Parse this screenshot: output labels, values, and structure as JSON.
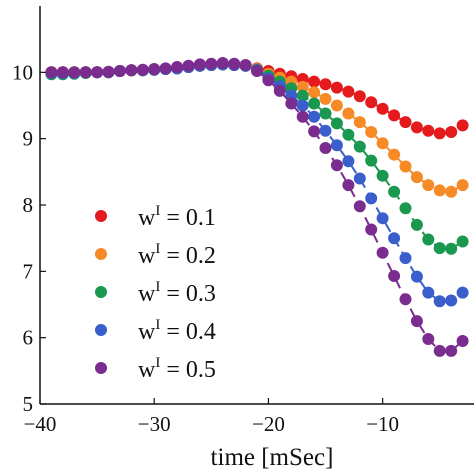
{
  "chart_data": {
    "type": "scatter",
    "title": "",
    "xlabel": "time [mSec]",
    "ylabel": "",
    "xlim": [
      -40,
      -2
    ],
    "ylim": [
      5,
      11
    ],
    "xticks": [
      -40,
      -30,
      -20,
      -10
    ],
    "xtick_labels": [
      "−40",
      "−30",
      "−20",
      "−10"
    ],
    "yticks": [
      5,
      6,
      7,
      8,
      9,
      10
    ],
    "ytick_labels": [
      "5",
      "6",
      "7",
      "8",
      "9",
      "10"
    ],
    "grid": false,
    "legend_position": "lower-left",
    "x": [
      -39,
      -38,
      -37,
      -36,
      -35,
      -34,
      -33,
      -32,
      -31,
      -30,
      -29,
      -28,
      -27,
      -26,
      -25,
      -24,
      -23,
      -22,
      -21,
      -20,
      -19,
      -18,
      -17,
      -16,
      -15,
      -14,
      -13,
      -12,
      -11,
      -10,
      -9,
      -8,
      -7,
      -6,
      -5,
      -4,
      -3
    ],
    "series": [
      {
        "name": "w^I = 0.1",
        "legend_base": "w",
        "legend_sup": "I",
        "legend_value": " = 0.1",
        "color": "#e41a1c",
        "values": [
          10.0,
          10.0,
          10.0,
          10.0,
          10.0,
          10.0,
          10.02,
          10.03,
          10.03,
          10.04,
          10.05,
          10.06,
          10.08,
          10.1,
          10.11,
          10.12,
          10.11,
          10.1,
          10.06,
          10.02,
          9.98,
          9.94,
          9.9,
          9.86,
          9.82,
          9.77,
          9.71,
          9.64,
          9.55,
          9.45,
          9.35,
          9.25,
          9.17,
          9.12,
          9.08,
          9.1,
          9.2
        ]
      },
      {
        "name": "w^I = 0.2",
        "legend_base": "w",
        "legend_sup": "I",
        "legend_value": " = 0.2",
        "color": "#f58a27",
        "values": [
          10.0,
          10.0,
          10.0,
          10.0,
          10.0,
          10.0,
          10.02,
          10.03,
          10.03,
          10.04,
          10.05,
          10.06,
          10.08,
          10.1,
          10.11,
          10.12,
          10.11,
          10.1,
          10.05,
          9.98,
          9.92,
          9.86,
          9.78,
          9.7,
          9.6,
          9.5,
          9.38,
          9.25,
          9.1,
          8.93,
          8.76,
          8.58,
          8.42,
          8.3,
          8.22,
          8.2,
          8.3
        ]
      },
      {
        "name": "w^I = 0.3",
        "legend_base": "w",
        "legend_sup": "I",
        "legend_value": " = 0.3",
        "color": "#1a9850",
        "values": [
          9.97,
          9.97,
          9.98,
          9.99,
          10.0,
          10.0,
          10.02,
          10.03,
          10.03,
          10.04,
          10.05,
          10.06,
          10.08,
          10.1,
          10.11,
          10.12,
          10.11,
          10.1,
          10.04,
          9.95,
          9.86,
          9.76,
          9.65,
          9.53,
          9.38,
          9.23,
          9.06,
          8.88,
          8.67,
          8.44,
          8.2,
          7.95,
          7.7,
          7.48,
          7.35,
          7.34,
          7.45
        ]
      },
      {
        "name": "w^I = 0.4",
        "legend_base": "w",
        "legend_sup": "I",
        "legend_value": " = 0.4",
        "color": "#3a5fcd",
        "values": [
          9.99,
          9.99,
          9.99,
          10.0,
          10.0,
          10.0,
          10.02,
          10.03,
          10.03,
          10.04,
          10.05,
          10.06,
          10.08,
          10.1,
          10.11,
          10.12,
          10.11,
          10.1,
          10.03,
          9.91,
          9.79,
          9.65,
          9.5,
          9.33,
          9.12,
          8.9,
          8.66,
          8.4,
          8.1,
          7.8,
          7.5,
          7.2,
          6.92,
          6.68,
          6.55,
          6.56,
          6.68
        ]
      },
      {
        "name": "w^I = 0.5",
        "legend_base": "w",
        "legend_sup": "I",
        "legend_value": " = 0.5",
        "color": "#7b2c8f",
        "values": [
          10.0,
          10.0,
          10.0,
          10.0,
          10.0,
          10.01,
          10.02,
          10.03,
          10.04,
          10.05,
          10.06,
          10.08,
          10.1,
          10.12,
          10.13,
          10.14,
          10.13,
          10.11,
          10.02,
          9.88,
          9.72,
          9.53,
          9.33,
          9.11,
          8.86,
          8.6,
          8.3,
          7.98,
          7.63,
          7.28,
          6.93,
          6.58,
          6.25,
          5.98,
          5.8,
          5.8,
          5.95
        ]
      }
    ]
  }
}
